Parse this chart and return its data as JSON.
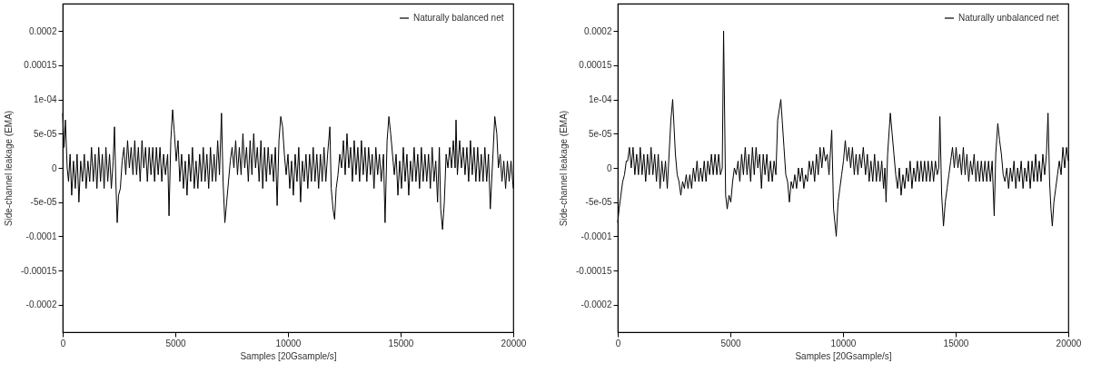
{
  "chart_data": [
    {
      "type": "line",
      "xlabel": "Samples [20Gsample/s]",
      "ylabel": "Side-channel leakage (EMA)",
      "legend": "top right",
      "xlim": [
        0,
        20000
      ],
      "xticks": [
        0,
        5000,
        10000,
        15000,
        20000
      ],
      "ylim": [
        -0.00024,
        0.00024
      ],
      "yticks": [
        -0.0002,
        {
          "value": -0.00015,
          "label": "-0.00015"
        },
        -0.0001,
        {
          "value": -5e-05,
          "label": "-5e-05"
        },
        0,
        {
          "value": 5e-05,
          "label": "5e-05"
        },
        {
          "value": 0.0001,
          "label": "1e-04"
        },
        0.00015,
        0.0002
      ],
      "series": [
        {
          "name": "Naturally balanced net",
          "color": "#000000",
          "x": [
            0,
            60,
            120,
            200,
            260,
            330,
            400,
            480,
            560,
            640,
            720,
            800,
            880,
            960,
            1040,
            1120,
            1200,
            1280,
            1360,
            1440,
            1520,
            1600,
            1680,
            1760,
            1840,
            1920,
            2000,
            2080,
            2160,
            2240,
            2300,
            2360,
            2420,
            2480,
            2560,
            2640,
            2720,
            2800,
            2880,
            2960,
            3040,
            3120,
            3200,
            3280,
            3360,
            3440,
            3520,
            3600,
            3680,
            3760,
            3840,
            3920,
            4000,
            4080,
            4160,
            4240,
            4320,
            4400,
            4480,
            4560,
            4660,
            4720,
            4800,
            4880,
            4960,
            5040,
            5120,
            5200,
            5280,
            5360,
            5440,
            5520,
            5600,
            5680,
            5760,
            5840,
            5920,
            6000,
            6080,
            6160,
            6240,
            6320,
            6400,
            6480,
            6560,
            6640,
            6720,
            6800,
            6880,
            6960,
            7050,
            7120,
            7200,
            7280,
            7360,
            7440,
            7520,
            7600,
            7680,
            7760,
            7840,
            7920,
            8000,
            8080,
            8160,
            8240,
            8320,
            8400,
            8480,
            8560,
            8640,
            8720,
            8800,
            8880,
            8960,
            9040,
            9120,
            9200,
            9280,
            9360,
            9440,
            9520,
            9600,
            9680,
            9760,
            9840,
            9920,
            10000,
            10080,
            10160,
            10240,
            10320,
            10400,
            10480,
            10560,
            10640,
            10720,
            10800,
            10880,
            10960,
            11040,
            11120,
            11200,
            11280,
            11360,
            11440,
            11520,
            11600,
            11680,
            11760,
            11860,
            11920,
            12000,
            12070,
            12140,
            12220,
            12300,
            12380,
            12460,
            12540,
            12620,
            12700,
            12780,
            12860,
            12940,
            13020,
            13100,
            13180,
            13260,
            13340,
            13420,
            13500,
            13580,
            13660,
            13740,
            13820,
            13900,
            13980,
            14060,
            14140,
            14240,
            14310,
            14400,
            14480,
            14560,
            14640,
            14720,
            14800,
            14880,
            14960,
            15040,
            15120,
            15200,
            15280,
            15360,
            15440,
            15520,
            15600,
            15680,
            15760,
            15840,
            15920,
            16000,
            16080,
            16160,
            16240,
            16320,
            16400,
            16480,
            16560,
            16640,
            16720,
            16780,
            16860,
            16940,
            17020,
            17100,
            17180,
            17260,
            17340,
            17420,
            17460,
            17520,
            17620,
            17700,
            17780,
            17860,
            17940,
            18020,
            18100,
            18180,
            18260,
            18340,
            18420,
            18500,
            18580,
            18660,
            18740,
            18820,
            18900,
            18980,
            19100,
            19180,
            19270,
            19340,
            19420,
            19500,
            19580,
            19660,
            19740,
            19820,
            19900,
            20000
          ],
          "values": [
            8e-05,
            3e-05,
            7e-05,
            0,
            -2e-05,
            2e-05,
            -4e-05,
            1e-05,
            -3e-05,
            2e-05,
            -5e-05,
            1e-05,
            -2e-05,
            2e-05,
            -3e-05,
            1e-05,
            -2e-05,
            3e-05,
            -2e-05,
            2e-05,
            -3e-05,
            3e-05,
            -2e-05,
            2e-05,
            -3e-05,
            3e-05,
            -2e-05,
            2e-05,
            -3e-05,
            1e-05,
            6e-05,
            -2e-05,
            -8e-05,
            -4e-05,
            -3e-05,
            1e-05,
            3e-05,
            -1e-05,
            4e-05,
            0,
            3e-05,
            -1e-05,
            4e-05,
            -1e-05,
            3e-05,
            -2e-05,
            4e-05,
            0,
            3e-05,
            -2e-05,
            3e-05,
            -1e-05,
            3e-05,
            -2e-05,
            3e-05,
            -1e-05,
            3e-05,
            -2e-05,
            2e-05,
            -1e-05,
            2e-05,
            -7e-05,
            4e-05,
            8.5e-05,
            5e-05,
            1e-05,
            4e-05,
            -2e-05,
            2e-05,
            -3e-05,
            1e-05,
            -4e-05,
            2e-05,
            -2e-05,
            3e-05,
            -3e-05,
            1e-05,
            -3e-05,
            2e-05,
            -2e-05,
            3e-05,
            -2e-05,
            2e-05,
            -3e-05,
            3e-05,
            -2e-05,
            2e-05,
            -2e-05,
            4e-05,
            -1e-05,
            8e-05,
            -2e-05,
            -8e-05,
            -5e-05,
            -2e-05,
            1e-05,
            3e-05,
            0,
            4e-05,
            -1e-05,
            3e-05,
            -1e-05,
            5e-05,
            0,
            3e-05,
            -2e-05,
            4e-05,
            -1e-05,
            5e-05,
            0,
            3e-05,
            -2e-05,
            4e-05,
            -3e-05,
            3e-05,
            -2e-05,
            3e-05,
            -1e-05,
            2e-05,
            -2e-05,
            3e-05,
            -5.5e-05,
            4e-05,
            7.5e-05,
            6e-05,
            2e-05,
            -1e-05,
            2e-05,
            -3e-05,
            1e-05,
            -4e-05,
            2e-05,
            -2e-05,
            3e-05,
            -5e-05,
            1e-05,
            -2e-05,
            2e-05,
            -3e-05,
            2e-05,
            -2e-05,
            3e-05,
            -2e-05,
            2e-05,
            -3e-05,
            2e-05,
            -2e-05,
            3e-05,
            -2e-05,
            2e-05,
            6e-05,
            -3e-05,
            -6e-05,
            -7.5e-05,
            -3e-05,
            -1e-05,
            2e-05,
            0,
            4e-05,
            -1e-05,
            5e-05,
            0,
            3e-05,
            -2e-05,
            4e-05,
            -1e-05,
            3e-05,
            -2e-05,
            4e-05,
            -1e-05,
            3e-05,
            -2e-05,
            3e-05,
            -1e-05,
            2e-05,
            -3e-05,
            3e-05,
            -1e-05,
            2e-05,
            -2e-05,
            2e-05,
            -8e-05,
            4e-05,
            7.5e-05,
            5e-05,
            2e-05,
            -1e-05,
            2e-05,
            -4e-05,
            1e-05,
            -3e-05,
            3e-05,
            -2e-05,
            2e-05,
            -4e-05,
            1e-05,
            -2e-05,
            3e-05,
            -2e-05,
            2e-05,
            -3e-05,
            3e-05,
            -2e-05,
            2e-05,
            -2e-05,
            2e-05,
            -3e-05,
            3e-05,
            -2e-05,
            1e-05,
            -5e-05,
            3e-05,
            -6e-05,
            -9e-05,
            -5e-05,
            2e-05,
            0,
            3e-05,
            0,
            4e-05,
            0,
            7e-05,
            -1e-05,
            4e-05,
            0,
            3e-05,
            -1e-05,
            3e-05,
            -2e-05,
            4e-05,
            -1e-05,
            3e-05,
            -2e-05,
            3e-05,
            -2e-05,
            2e-05,
            -2e-05,
            3e-05,
            -2e-05,
            2e-05,
            -6e-05,
            2e-05,
            7.5e-05,
            5e-05,
            0,
            2e-05,
            -2e-05,
            1e-05,
            -3e-05,
            1e-05,
            -2e-05,
            1e-05,
            -3e-05
          ]
        }
      ]
    },
    {
      "type": "line",
      "xlabel": "Samples [20Gsample/s]",
      "ylabel": "Side-channel leakage (EMA)",
      "legend": "top right",
      "xlim": [
        0,
        20000
      ],
      "xticks": [
        0,
        5000,
        10000,
        15000,
        20000
      ],
      "ylim": [
        -0.00024,
        0.00024
      ],
      "yticks": [
        -0.0002,
        {
          "value": -0.00015,
          "label": "-0.00015"
        },
        -0.0001,
        {
          "value": -5e-05,
          "label": "-5e-05"
        },
        0,
        {
          "value": 5e-05,
          "label": "5e-05"
        },
        {
          "value": 0.0001,
          "label": "1e-04"
        },
        0.00015,
        0.0002
      ],
      "series": [
        {
          "name": "Naturally unbalanced net",
          "color": "#000000",
          "x": [
            0,
            60,
            140,
            220,
            300,
            380,
            440,
            520,
            600,
            680,
            760,
            840,
            920,
            1000,
            1080,
            1160,
            1240,
            1320,
            1400,
            1480,
            1560,
            1640,
            1720,
            1800,
            1880,
            1960,
            2040,
            2120,
            2200,
            2280,
            2360,
            2440,
            2500,
            2560,
            2640,
            2720,
            2800,
            2880,
            2960,
            3040,
            3120,
            3200,
            3280,
            3360,
            3440,
            3520,
            3600,
            3680,
            3760,
            3840,
            3920,
            4000,
            4080,
            4160,
            4240,
            4320,
            4400,
            4480,
            4560,
            4640,
            4700,
            4790,
            4860,
            4940,
            5020,
            5100,
            5180,
            5260,
            5340,
            5420,
            5500,
            5580,
            5660,
            5740,
            5820,
            5900,
            5980,
            6060,
            6140,
            6220,
            6300,
            6380,
            6460,
            6540,
            6620,
            6700,
            6780,
            6860,
            6940,
            7020,
            7100,
            7240,
            7300,
            7380,
            7460,
            7540,
            7620,
            7700,
            7780,
            7860,
            7940,
            8020,
            8100,
            8180,
            8260,
            8340,
            8420,
            8500,
            8580,
            8660,
            8740,
            8820,
            8900,
            8980,
            9060,
            9140,
            9220,
            9300,
            9380,
            9500,
            9580,
            9700,
            9780,
            9860,
            9940,
            10020,
            10100,
            10180,
            10260,
            10340,
            10420,
            10500,
            10580,
            10660,
            10740,
            10820,
            10900,
            11000,
            11080,
            11160,
            11240,
            11320,
            11400,
            11480,
            11560,
            11640,
            11720,
            11800,
            11860,
            11910,
            11980,
            12100,
            12180,
            12260,
            12340,
            12420,
            12500,
            12580,
            12660,
            12740,
            12820,
            12900,
            12980,
            13060,
            13140,
            13220,
            13300,
            13380,
            13460,
            13540,
            13620,
            13700,
            13780,
            13860,
            13940,
            14020,
            14100,
            14180,
            14250,
            14300,
            14380,
            14460,
            14540,
            14620,
            14700,
            14780,
            14860,
            14940,
            15020,
            15100,
            15180,
            15260,
            15340,
            15420,
            15500,
            15580,
            15660,
            15740,
            15820,
            15900,
            15980,
            16060,
            16140,
            16220,
            16300,
            16380,
            16460,
            16540,
            16620,
            16710,
            16780,
            16870,
            16950,
            17030,
            17110,
            17190,
            17270,
            17350,
            17430,
            17510,
            17590,
            17670,
            17750,
            17830,
            17910,
            17990,
            18070,
            18150,
            18230,
            18310,
            18390,
            18470,
            18550,
            18630,
            18710,
            18790,
            18870,
            18950,
            19030,
            19100,
            19170,
            19230,
            19290,
            19360,
            19440,
            19520,
            19600,
            19680,
            19760,
            19840,
            19920,
            20000
          ],
          "values": [
            -8e-05,
            -6e-05,
            -4e-05,
            -2e-05,
            -1e-05,
            1e-05,
            1e-05,
            3e-05,
            0,
            3e-05,
            -1e-05,
            2e-05,
            -1e-05,
            3e-05,
            -1e-05,
            2e-05,
            -2e-05,
            2e-05,
            -1e-05,
            3e-05,
            -1e-05,
            2e-05,
            -2e-05,
            2e-05,
            -3e-05,
            1e-05,
            -2e-05,
            1e-05,
            -3e-05,
            2e-05,
            7e-05,
            0.0001,
            6e-05,
            2e-05,
            -1e-05,
            -2e-05,
            -4e-05,
            -2e-05,
            -3e-05,
            -1e-05,
            -3e-05,
            -1e-05,
            -3e-05,
            0,
            -2e-05,
            1e-05,
            -2e-05,
            0,
            -2e-05,
            1e-05,
            -2e-05,
            1e-05,
            -1e-05,
            2e-05,
            -1e-05,
            2e-05,
            -1e-05,
            2e-05,
            -1e-05,
            0,
            0.0002,
            -4e-05,
            -6e-05,
            -4e-05,
            -5e-05,
            -2e-05,
            0,
            -1e-05,
            1e-05,
            -2e-05,
            2e-05,
            -1e-05,
            3e-05,
            -1e-05,
            2e-05,
            -2e-05,
            3e-05,
            -1e-05,
            3e-05,
            0,
            2e-05,
            -3e-05,
            2e-05,
            -1e-05,
            2e-05,
            -2e-05,
            1e-05,
            -2e-05,
            1e-05,
            -1e-05,
            7e-05,
            0.0001,
            7e-05,
            3e-05,
            -1e-05,
            -2e-05,
            -5e-05,
            -2e-05,
            -3e-05,
            -1e-05,
            -3e-05,
            0,
            -2e-05,
            0,
            -3e-05,
            -1e-05,
            -2e-05,
            1e-05,
            -1e-05,
            1e-05,
            -2e-05,
            2e-05,
            -1e-05,
            3e-05,
            0,
            3e-05,
            1e-05,
            2e-05,
            -1e-05,
            5.5e-05,
            -6e-05,
            -0.0001,
            -5e-05,
            -3e-05,
            -1e-05,
            1e-05,
            4e-05,
            1e-05,
            3e-05,
            0,
            3e-05,
            -1e-05,
            2e-05,
            -1e-05,
            2e-05,
            0,
            3e-05,
            -1e-05,
            2e-05,
            -2e-05,
            1e-05,
            -2e-05,
            2e-05,
            -2e-05,
            1e-05,
            -2e-05,
            1e-05,
            -3e-05,
            0,
            -5e-05,
            2e-05,
            8e-05,
            5e-05,
            2e-05,
            -1e-05,
            -3e-05,
            0,
            -4e-05,
            -1e-05,
            -3e-05,
            0,
            -2e-05,
            1e-05,
            -3e-05,
            0,
            -2e-05,
            1e-05,
            -2e-05,
            1e-05,
            -2e-05,
            1e-05,
            -2e-05,
            1e-05,
            -2e-05,
            1e-05,
            -2e-05,
            1e-05,
            -1e-05,
            0,
            7.5e-05,
            -4e-05,
            -8.5e-05,
            -5e-05,
            -3e-05,
            -1e-05,
            1e-05,
            3e-05,
            0,
            3e-05,
            0,
            2e-05,
            -1e-05,
            3e-05,
            -1e-05,
            2e-05,
            -2e-05,
            1e-05,
            -1e-05,
            2e-05,
            -2e-05,
            1e-05,
            -2e-05,
            1e-05,
            -2e-05,
            1e-05,
            -2e-05,
            1e-05,
            -2e-05,
            1e-05,
            -7e-05,
            2e-05,
            6.5e-05,
            4e-05,
            2e-05,
            -1e-05,
            -2e-05,
            0,
            -3e-05,
            0,
            -2e-05,
            1e-05,
            -3e-05,
            0,
            -2e-05,
            1e-05,
            -3e-05,
            0,
            -2e-05,
            1e-05,
            -3e-05,
            1e-05,
            -2e-05,
            2e-05,
            -2e-05,
            1e-05,
            -2e-05,
            2e-05,
            -1e-05,
            2e-05,
            8e-05,
            -2e-05,
            -6e-05,
            -8.5e-05,
            -5e-05,
            -3e-05,
            -1e-05,
            1e-05,
            -1e-05,
            3e-05,
            0,
            3e-05,
            1e-05
          ]
        }
      ]
    }
  ]
}
